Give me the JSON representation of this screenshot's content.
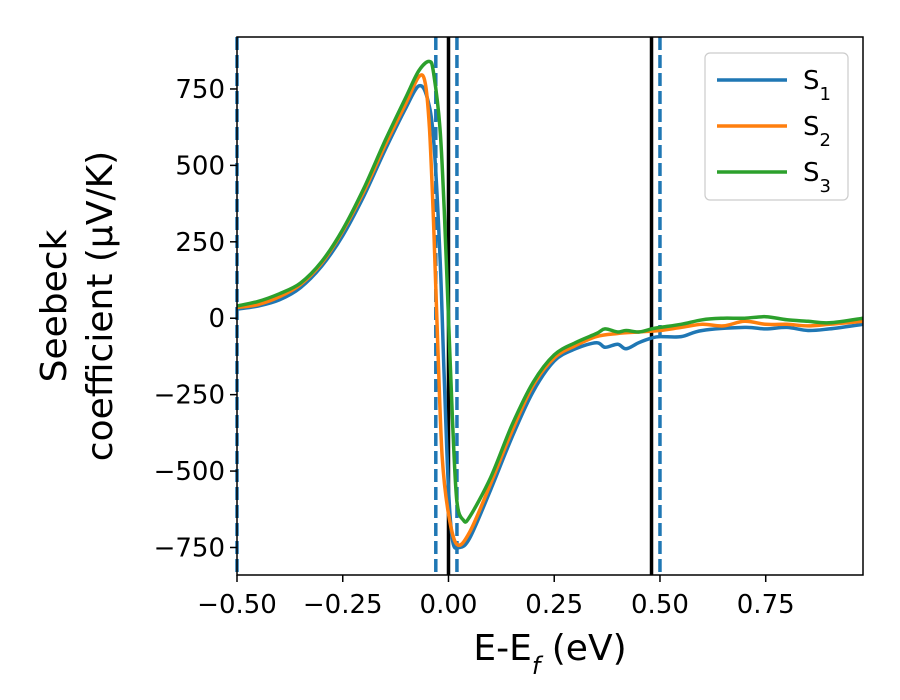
{
  "chart_data": {
    "type": "line",
    "xlabel": "E-E",
    "xlabel_sub": "f",
    "xlabel_unit": " (eV)",
    "ylabel_line1": "Seebeck",
    "ylabel_line2": "coefficient  (μV/K)",
    "xlim": [
      -0.5,
      0.98
    ],
    "ylim": [
      -840,
      920
    ],
    "x_ticks": [
      -0.5,
      -0.25,
      0.0,
      0.25,
      0.5,
      0.75
    ],
    "x_tick_labels": [
      "−0.50",
      "−0.25",
      "0.00",
      "0.25",
      "0.50",
      "0.75"
    ],
    "y_ticks": [
      750,
      500,
      250,
      0,
      -250,
      -500,
      -750
    ],
    "y_tick_labels": [
      "750",
      "500",
      "250",
      "0",
      "−250",
      "−500",
      "−750"
    ],
    "grid": false,
    "legend_position": "top-right",
    "vertical_lines": [
      {
        "x": -0.5,
        "style": "dashed",
        "color": "#1f77b4"
      },
      {
        "x": -0.03,
        "style": "dashed",
        "color": "#1f77b4"
      },
      {
        "x": 0.0,
        "style": "solid",
        "color": "#000000"
      },
      {
        "x": 0.02,
        "style": "dashed",
        "color": "#1f77b4"
      },
      {
        "x": 0.48,
        "style": "solid",
        "color": "#000000"
      },
      {
        "x": 0.5,
        "style": "dashed",
        "color": "#1f77b4"
      }
    ],
    "series": [
      {
        "name": "S",
        "sub": "1",
        "color": "#1f77b4",
        "points": [
          [
            -0.5,
            30
          ],
          [
            -0.45,
            40
          ],
          [
            -0.4,
            60
          ],
          [
            -0.35,
            100
          ],
          [
            -0.3,
            170
          ],
          [
            -0.25,
            270
          ],
          [
            -0.2,
            400
          ],
          [
            -0.15,
            550
          ],
          [
            -0.1,
            690
          ],
          [
            -0.07,
            760
          ],
          [
            -0.05,
            720
          ],
          [
            -0.035,
            580
          ],
          [
            -0.02,
            200
          ],
          [
            -0.01,
            -200
          ],
          [
            0.0,
            -560
          ],
          [
            0.01,
            -730
          ],
          [
            0.025,
            -750
          ],
          [
            0.05,
            -720
          ],
          [
            0.1,
            -560
          ],
          [
            0.15,
            -390
          ],
          [
            0.2,
            -240
          ],
          [
            0.25,
            -140
          ],
          [
            0.3,
            -100
          ],
          [
            0.35,
            -80
          ],
          [
            0.37,
            -95
          ],
          [
            0.4,
            -85
          ],
          [
            0.42,
            -100
          ],
          [
            0.45,
            -80
          ],
          [
            0.48,
            -65
          ],
          [
            0.5,
            -60
          ],
          [
            0.55,
            -60
          ],
          [
            0.6,
            -40
          ],
          [
            0.7,
            -30
          ],
          [
            0.75,
            -35
          ],
          [
            0.8,
            -30
          ],
          [
            0.85,
            -40
          ],
          [
            0.9,
            -35
          ],
          [
            0.98,
            -20
          ]
        ]
      },
      {
        "name": "S",
        "sub": "2",
        "color": "#ff7f0e",
        "points": [
          [
            -0.5,
            35
          ],
          [
            -0.45,
            45
          ],
          [
            -0.4,
            70
          ],
          [
            -0.35,
            110
          ],
          [
            -0.3,
            180
          ],
          [
            -0.25,
            285
          ],
          [
            -0.2,
            415
          ],
          [
            -0.15,
            565
          ],
          [
            -0.1,
            705
          ],
          [
            -0.07,
            790
          ],
          [
            -0.055,
            770
          ],
          [
            -0.045,
            620
          ],
          [
            -0.035,
            300
          ],
          [
            -0.025,
            -100
          ],
          [
            -0.015,
            -450
          ],
          [
            0.0,
            -640
          ],
          [
            0.02,
            -740
          ],
          [
            0.05,
            -700
          ],
          [
            0.1,
            -540
          ],
          [
            0.15,
            -370
          ],
          [
            0.2,
            -220
          ],
          [
            0.25,
            -130
          ],
          [
            0.3,
            -90
          ],
          [
            0.35,
            -60
          ],
          [
            0.4,
            -50
          ],
          [
            0.45,
            -45
          ],
          [
            0.5,
            -40
          ],
          [
            0.55,
            -30
          ],
          [
            0.6,
            -20
          ],
          [
            0.65,
            -25
          ],
          [
            0.7,
            -10
          ],
          [
            0.75,
            -20
          ],
          [
            0.8,
            -20
          ],
          [
            0.85,
            -25
          ],
          [
            0.9,
            -20
          ],
          [
            0.98,
            -10
          ]
        ]
      },
      {
        "name": "S",
        "sub": "3",
        "color": "#2ca02c",
        "points": [
          [
            -0.5,
            40
          ],
          [
            -0.45,
            55
          ],
          [
            -0.4,
            80
          ],
          [
            -0.35,
            115
          ],
          [
            -0.3,
            185
          ],
          [
            -0.25,
            290
          ],
          [
            -0.2,
            425
          ],
          [
            -0.15,
            580
          ],
          [
            -0.1,
            725
          ],
          [
            -0.07,
            810
          ],
          [
            -0.045,
            840
          ],
          [
            -0.035,
            800
          ],
          [
            -0.02,
            620
          ],
          [
            -0.01,
            350
          ],
          [
            0.0,
            0
          ],
          [
            0.01,
            -350
          ],
          [
            0.02,
            -600
          ],
          [
            0.035,
            -660
          ],
          [
            0.05,
            -650
          ],
          [
            0.1,
            -520
          ],
          [
            0.15,
            -350
          ],
          [
            0.2,
            -210
          ],
          [
            0.25,
            -120
          ],
          [
            0.3,
            -80
          ],
          [
            0.35,
            -50
          ],
          [
            0.37,
            -35
          ],
          [
            0.4,
            -45
          ],
          [
            0.42,
            -40
          ],
          [
            0.45,
            -45
          ],
          [
            0.48,
            -35
          ],
          [
            0.5,
            -30
          ],
          [
            0.55,
            -20
          ],
          [
            0.6,
            -5
          ],
          [
            0.65,
            0
          ],
          [
            0.7,
            0
          ],
          [
            0.75,
            5
          ],
          [
            0.8,
            -5
          ],
          [
            0.85,
            -10
          ],
          [
            0.9,
            -15
          ],
          [
            0.98,
            0
          ]
        ]
      }
    ]
  }
}
